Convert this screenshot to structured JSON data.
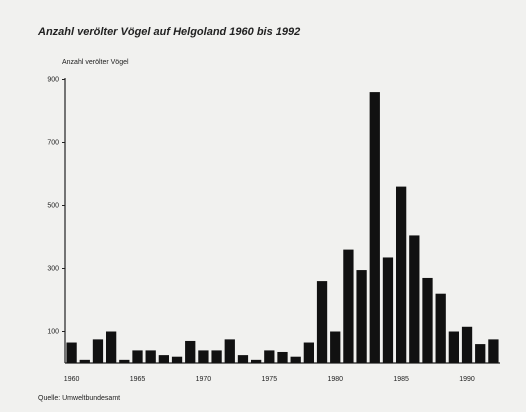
{
  "chart_data": {
    "type": "bar",
    "title": "Anzahl verölter Vögel auf Helgoland 1960 bis 1992",
    "y_label": "Anzahl verölter Vögel",
    "source": "Quelle: Umweltbundesamt",
    "categories": [
      "1960",
      null,
      null,
      null,
      null,
      "1965",
      null,
      null,
      null,
      null,
      "1970",
      null,
      null,
      null,
      null,
      "1975",
      null,
      null,
      null,
      null,
      "1980",
      null,
      null,
      null,
      null,
      "1985",
      null,
      null,
      null,
      null,
      "1990",
      null,
      null
    ],
    "values": [
      65,
      10,
      75,
      100,
      10,
      40,
      40,
      25,
      20,
      70,
      40,
      40,
      75,
      25,
      10,
      40,
      35,
      20,
      65,
      260,
      100,
      360,
      295,
      860,
      335,
      560,
      405,
      270,
      220,
      100,
      115,
      60,
      75
    ],
    "color": "#111111",
    "ylim": [
      0,
      900
    ],
    "yticks": [
      100,
      300,
      500,
      700,
      900
    ],
    "grid": false
  }
}
